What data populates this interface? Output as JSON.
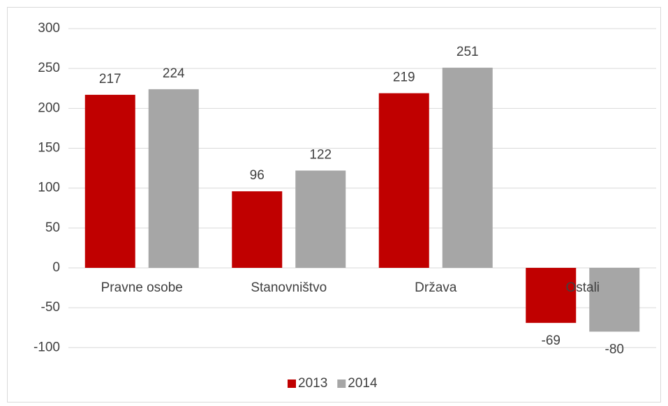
{
  "chart_data": {
    "type": "bar",
    "categories": [
      "Pravne osobe",
      "Stanovništvo",
      "Država",
      "Ostali"
    ],
    "series": [
      {
        "name": "2013",
        "color": "#c00000",
        "values": [
          217,
          96,
          219,
          -69
        ]
      },
      {
        "name": "2014",
        "color": "#a6a6a6",
        "values": [
          224,
          122,
          251,
          -80
        ]
      }
    ],
    "ylim": [
      -100,
      300
    ],
    "yticks": [
      -100,
      -50,
      0,
      50,
      100,
      150,
      200,
      250,
      300
    ],
    "grid": true,
    "legend": "bottom"
  }
}
